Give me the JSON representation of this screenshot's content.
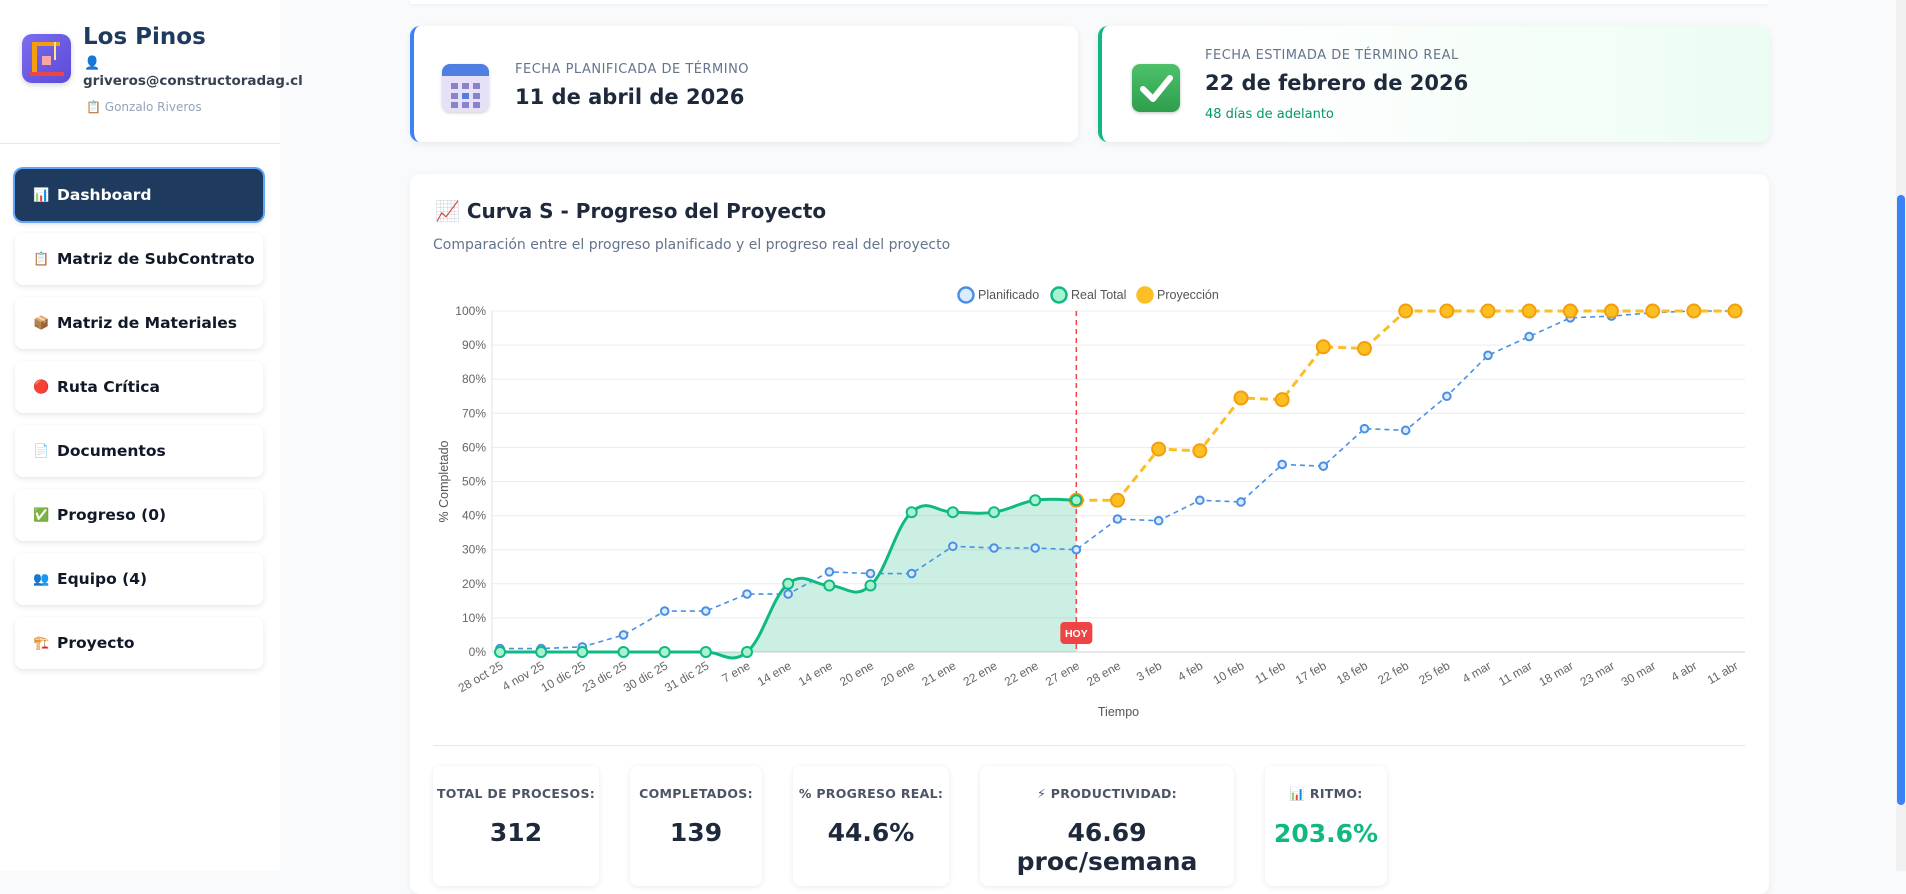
{
  "project": {
    "name": "Los Pinos",
    "user_icon": "👤",
    "email": "griveros@constructoradag.cl",
    "owner_icon": "📋",
    "owner": "Gonzalo Riveros"
  },
  "nav": [
    {
      "icon": "📊",
      "label": "Dashboard",
      "active": true
    },
    {
      "icon": "📋",
      "label": "Matriz de SubContrato"
    },
    {
      "icon": "📦",
      "label": "Matriz de Materiales"
    },
    {
      "icon": "🔴",
      "label": "Ruta Crítica"
    },
    {
      "icon": "📄",
      "label": "Documentos"
    },
    {
      "icon": "✅",
      "label": "Progreso (0)"
    },
    {
      "icon": "👥",
      "label": "Equipo (4)"
    },
    {
      "icon": "🏗️",
      "label": "Proyecto"
    }
  ],
  "cards": [
    {
      "label": "FECHA PLANIFICADA DE TÉRMINO",
      "date": "11 de abril de 2026"
    },
    {
      "label": "FECHA ESTIMADA DE TÉRMINO REAL",
      "date": "22 de febrero de 2026",
      "note": "48 días de adelanto"
    }
  ],
  "chart_data": {
    "type": "line",
    "icon": "📈",
    "title": "Curva S - Progreso del Proyecto",
    "subtitle": "Comparación entre el progreso planificado y el progreso real del proyecto",
    "xlabel": "Tiempo",
    "ylabel": "% Completado",
    "legend": "top",
    "grid": true,
    "categories": [
      "28 oct 25",
      "4 nov 25",
      "10 dic 25",
      "23 dic 25",
      "30 dic 25",
      "31 dic 25",
      "7 ene",
      "14 ene",
      "14 ene",
      "20 ene",
      "20 ene",
      "21 ene",
      "22 ene",
      "22 ene",
      "27 ene",
      "28 ene",
      "3 feb",
      "4 feb",
      "10 feb",
      "11 feb",
      "17 feb",
      "18 feb",
      "22 feb",
      "25 feb",
      "4 mar",
      "11 mar",
      "18 mar",
      "23 mar",
      "30 mar",
      "4 abr",
      "11 abr"
    ],
    "ylim": [
      0,
      100
    ],
    "yticks": [
      {
        "value": 0,
        "label": "0%"
      },
      {
        "value": 10,
        "label": "10%"
      },
      {
        "value": 20,
        "label": "20%"
      },
      {
        "value": 30,
        "label": "30%"
      },
      {
        "value": 40,
        "label": "40%"
      },
      {
        "value": 50,
        "label": "50%"
      },
      {
        "value": 60,
        "label": "60%"
      },
      {
        "value": 70,
        "label": "70%"
      },
      {
        "value": 80,
        "label": "80%"
      },
      {
        "value": 90,
        "label": "90%"
      },
      {
        "value": 100,
        "label": "100%"
      }
    ],
    "today": {
      "label": "HOY",
      "category": "27 ene",
      "color": "#ef4444"
    },
    "series": [
      {
        "name": "Planificado",
        "color": "#4a90e2",
        "marker_fill": "#dbeafe",
        "dashed": true,
        "smooth": false,
        "fill": false,
        "values": [
          1,
          1,
          1.5,
          5,
          12,
          12,
          17,
          17,
          23.5,
          23,
          23,
          31,
          30.5,
          30.5,
          30,
          39,
          38.5,
          44.5,
          44,
          55,
          54.5,
          65.5,
          65,
          75,
          87,
          92.5,
          98,
          98.5,
          99.5,
          100,
          100
        ]
      },
      {
        "name": "Real Total",
        "color": "#10b981",
        "marker_fill": "#a7f3d0",
        "dashed": false,
        "smooth": true,
        "fill": true,
        "values": [
          0,
          0,
          0,
          0,
          0,
          0,
          0,
          20,
          19.5,
          19.5,
          41,
          41,
          41,
          44.5,
          44.5,
          null,
          null,
          null,
          null,
          null,
          null,
          null,
          null,
          null,
          null,
          null,
          null,
          null,
          null,
          null,
          null
        ]
      },
      {
        "name": "Proyección",
        "color": "#fbbf24",
        "marker_fill": "#fbbf24",
        "dashed": true,
        "smooth": false,
        "fill": false,
        "values": [
          null,
          null,
          null,
          null,
          null,
          null,
          null,
          null,
          null,
          null,
          null,
          null,
          null,
          null,
          44.5,
          44.5,
          59.5,
          59,
          74.5,
          74,
          89.5,
          89,
          100,
          100,
          100,
          100,
          100,
          100,
          100,
          100,
          100
        ]
      }
    ]
  },
  "stats": [
    {
      "label": "TOTAL DE PROCESOS:",
      "value": "312"
    },
    {
      "label": "COMPLETADOS:",
      "value": "139"
    },
    {
      "label": "% PROGRESO REAL:",
      "value": "44.6%"
    },
    {
      "icon": "⚡",
      "label": "PRODUCTIVIDAD:",
      "value": "46.69 proc/semana"
    },
    {
      "icon": "📊",
      "label": "RITMO:",
      "value": "203.6%",
      "color": "#10b981"
    }
  ]
}
